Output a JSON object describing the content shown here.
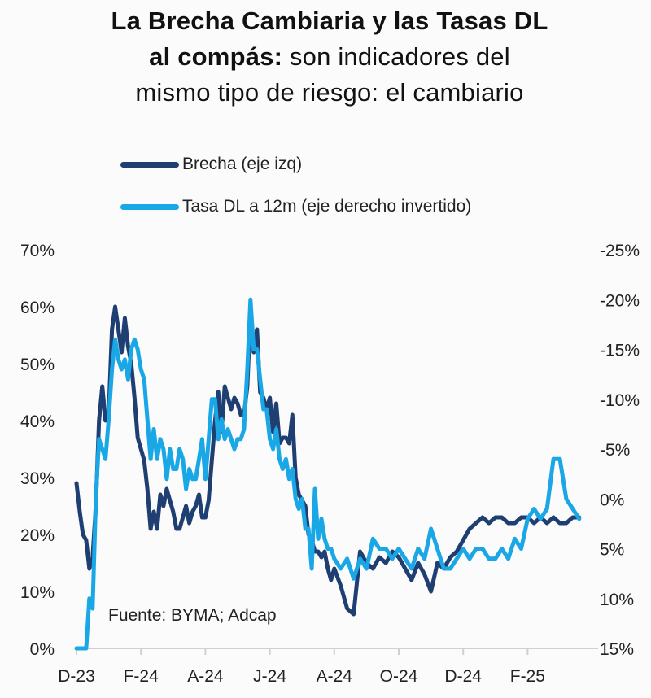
{
  "title": {
    "line1": "La Brecha Cambiaria y las Tasas DL",
    "line2_bold": "al compás:",
    "line2_rest": " son indicadores del",
    "line3": "mismo tipo de riesgo: el cambiario"
  },
  "chart_data": {
    "type": "line",
    "title": "La Brecha Cambiaria y las Tasas DL al compás: son indicadores del mismo tipo de riesgo: el cambiario",
    "source": "Fuente: BYMA; Adcap",
    "x_ticks": [
      "D-23",
      "F-24",
      "A-24",
      "J-24",
      "A-24",
      "O-24",
      "D-24",
      "F-25"
    ],
    "x_range_months": [
      0,
      15.6
    ],
    "y_left": {
      "label": "Brecha (eje izq)",
      "range": [
        0,
        70
      ],
      "ticks": [
        "0%",
        "10%",
        "20%",
        "30%",
        "40%",
        "50%",
        "60%",
        "70%"
      ]
    },
    "y_right": {
      "label": "Tasa DL a 12m (eje derecho invertido)",
      "range": [
        15,
        -25
      ],
      "inverted": true,
      "ticks": [
        "-25%",
        "-20%",
        "-15%",
        "-10%",
        "-5%",
        "0%",
        "5%",
        "10%",
        "15%"
      ]
    },
    "grid": false,
    "legend_position": "top-left",
    "series": [
      {
        "name": "Brecha (eje izq)",
        "axis": "left",
        "color": "#1f3f73",
        "x_months": [
          0,
          0.1,
          0.2,
          0.3,
          0.4,
          0.5,
          0.6,
          0.7,
          0.8,
          0.9,
          1.0,
          1.1,
          1.2,
          1.3,
          1.4,
          1.5,
          1.6,
          1.7,
          1.8,
          1.9,
          2.0,
          2.1,
          2.2,
          2.3,
          2.4,
          2.5,
          2.6,
          2.7,
          2.8,
          2.9,
          3.0,
          3.1,
          3.2,
          3.3,
          3.4,
          3.5,
          3.6,
          3.7,
          3.8,
          3.9,
          4.0,
          4.1,
          4.2,
          4.3,
          4.4,
          4.5,
          4.6,
          4.7,
          4.8,
          4.9,
          5.0,
          5.1,
          5.2,
          5.3,
          5.4,
          5.5,
          5.6,
          5.7,
          5.8,
          5.9,
          6.0,
          6.1,
          6.2,
          6.3,
          6.4,
          6.5,
          6.6,
          6.7,
          6.8,
          6.9,
          7.0,
          7.1,
          7.2,
          7.3,
          7.4,
          7.5,
          7.6,
          7.7,
          7.8,
          7.9,
          8.0,
          8.2,
          8.4,
          8.6,
          8.8,
          9.0,
          9.2,
          9.4,
          9.6,
          9.8,
          10.0,
          10.2,
          10.4,
          10.6,
          10.8,
          11.0,
          11.2,
          11.4,
          11.6,
          11.8,
          12.0,
          12.2,
          12.4,
          12.6,
          12.8,
          13.0,
          13.2,
          13.4,
          13.6,
          13.8,
          14.0,
          14.2,
          14.4,
          14.6,
          14.8,
          15.0,
          15.2,
          15.4,
          15.6
        ],
        "values": [
          29,
          24,
          20,
          19,
          14,
          16,
          25,
          40,
          46,
          40,
          41,
          56,
          60,
          56,
          52,
          58,
          53,
          50,
          44,
          37,
          35,
          33,
          28,
          21,
          24,
          21,
          27,
          25,
          28,
          26,
          24,
          21,
          21,
          23,
          25,
          22,
          24,
          25,
          27,
          23,
          23,
          26,
          33,
          40,
          45,
          38,
          46,
          44,
          42,
          44,
          43,
          41,
          41,
          46,
          59,
          52,
          56,
          45,
          44,
          42,
          44,
          38,
          43,
          36,
          37,
          37,
          36,
          41,
          30,
          27,
          26,
          25,
          20,
          19,
          17,
          17,
          16,
          17,
          14,
          12,
          14,
          11,
          7,
          6,
          17,
          15,
          14,
          16,
          15,
          17,
          16,
          14,
          12,
          15,
          13,
          10,
          15,
          14,
          16,
          17,
          19,
          21,
          22,
          23,
          22,
          23,
          23,
          22,
          22,
          23,
          23,
          22,
          23,
          22,
          23,
          22,
          22,
          23,
          23
        ]
      },
      {
        "name": "Tasa DL a 12m (eje derecho invertido)",
        "axis": "right",
        "color": "#1aa7e6",
        "x_months": [
          0,
          0.1,
          0.2,
          0.3,
          0.4,
          0.5,
          0.6,
          0.7,
          0.8,
          0.9,
          1.0,
          1.1,
          1.2,
          1.3,
          1.4,
          1.5,
          1.6,
          1.7,
          1.8,
          1.9,
          2.0,
          2.1,
          2.2,
          2.3,
          2.4,
          2.5,
          2.6,
          2.7,
          2.8,
          2.9,
          3.0,
          3.1,
          3.2,
          3.3,
          3.4,
          3.5,
          3.6,
          3.7,
          3.8,
          3.9,
          4.0,
          4.1,
          4.2,
          4.3,
          4.4,
          4.5,
          4.6,
          4.7,
          4.8,
          4.9,
          5.0,
          5.1,
          5.2,
          5.3,
          5.4,
          5.5,
          5.6,
          5.7,
          5.8,
          5.9,
          6.0,
          6.1,
          6.2,
          6.3,
          6.4,
          6.5,
          6.6,
          6.7,
          6.8,
          6.9,
          7.0,
          7.1,
          7.2,
          7.3,
          7.4,
          7.5,
          7.6,
          7.7,
          7.8,
          7.9,
          8.0,
          8.2,
          8.4,
          8.6,
          8.8,
          9.0,
          9.2,
          9.4,
          9.6,
          9.8,
          10.0,
          10.2,
          10.4,
          10.6,
          10.8,
          11.0,
          11.2,
          11.4,
          11.6,
          11.8,
          12.0,
          12.2,
          12.4,
          12.6,
          12.8,
          13.0,
          13.2,
          13.4,
          13.6,
          13.8,
          14.0,
          14.2,
          14.4,
          14.6,
          14.8,
          15.0,
          15.2,
          15.4,
          15.6
        ],
        "values": [
          15,
          15,
          15,
          15,
          10,
          11,
          0,
          -6,
          -5,
          -4,
          -8,
          -13,
          -16,
          -14,
          -13,
          -14,
          -12,
          -15,
          -16,
          -15,
          -13,
          -12,
          -8,
          -4,
          -7,
          -4,
          -6,
          -5,
          -2,
          -5,
          -3,
          -3,
          -5,
          -4,
          -1,
          -3,
          -2,
          -2,
          -4,
          -6,
          -2,
          -6,
          -10,
          -10,
          -6,
          -8,
          -6,
          -7,
          -6,
          -5,
          -6,
          -6,
          -7,
          -13,
          -20,
          -15,
          -15,
          -12,
          -9,
          -9,
          -6,
          -5,
          -7,
          -4,
          -3,
          -4,
          -2,
          -3,
          0,
          1,
          0,
          3,
          3,
          7,
          -1,
          4,
          2,
          4,
          5,
          5,
          6,
          7,
          6,
          8,
          6,
          7,
          4,
          5,
          5,
          6,
          5,
          6,
          7,
          5,
          6,
          3,
          5,
          7,
          7,
          6,
          5,
          6,
          5,
          5,
          6,
          6,
          5,
          6,
          4,
          5,
          2,
          1,
          2,
          1,
          -4,
          -4,
          0,
          1,
          2
        ]
      }
    ]
  }
}
